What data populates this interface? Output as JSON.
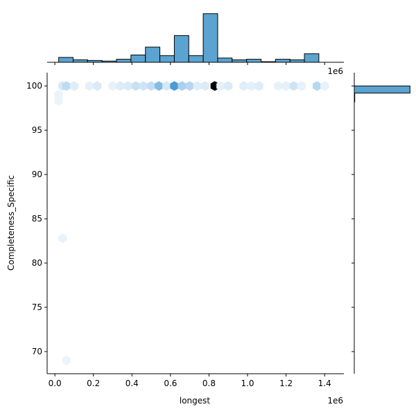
{
  "chart_data": {
    "type": "hexbin-jointplot",
    "xlabel": "longest",
    "ylabel": "Completeness_Specific",
    "x_offset_label": "1e6",
    "top_offset_label": "1e6",
    "xlim": [
      -40000,
      1500000
    ],
    "ylim": [
      67.5,
      101.5
    ],
    "x_ticks": [
      0,
      200000,
      400000,
      600000,
      800000,
      1000000,
      1200000,
      1400000
    ],
    "x_tick_labels": [
      "0.0",
      "0.2",
      "0.4",
      "0.6",
      "0.8",
      "1.0",
      "1.2",
      "1.4"
    ],
    "y_ticks": [
      70,
      75,
      80,
      85,
      90,
      95,
      100
    ],
    "y_tick_labels": [
      "70",
      "75",
      "80",
      "85",
      "90",
      "95",
      "100"
    ],
    "hexbins": [
      {
        "x": 40000,
        "y": 100,
        "count": 0.12
      },
      {
        "x": 60000,
        "y": 100,
        "count": 0.22
      },
      {
        "x": 100000,
        "y": 100,
        "count": 0.08
      },
      {
        "x": 180000,
        "y": 100,
        "count": 0.06
      },
      {
        "x": 220000,
        "y": 100,
        "count": 0.1
      },
      {
        "x": 300000,
        "y": 100,
        "count": 0.05
      },
      {
        "x": 340000,
        "y": 100,
        "count": 0.09
      },
      {
        "x": 380000,
        "y": 100,
        "count": 0.1
      },
      {
        "x": 420000,
        "y": 100,
        "count": 0.18
      },
      {
        "x": 460000,
        "y": 100,
        "count": 0.15
      },
      {
        "x": 500000,
        "y": 100,
        "count": 0.2
      },
      {
        "x": 540000,
        "y": 100,
        "count": 0.45
      },
      {
        "x": 580000,
        "y": 100,
        "count": 0.12
      },
      {
        "x": 620000,
        "y": 100,
        "count": 0.7
      },
      {
        "x": 660000,
        "y": 100,
        "count": 0.3
      },
      {
        "x": 700000,
        "y": 100,
        "count": 0.25
      },
      {
        "x": 740000,
        "y": 100,
        "count": 0.08
      },
      {
        "x": 780000,
        "y": 100,
        "count": 0.1
      },
      {
        "x": 830000,
        "y": 100,
        "count": 1.0
      },
      {
        "x": 860000,
        "y": 100,
        "count": 0.06
      },
      {
        "x": 900000,
        "y": 100,
        "count": 0.1
      },
      {
        "x": 980000,
        "y": 100,
        "count": 0.08
      },
      {
        "x": 1020000,
        "y": 100,
        "count": 0.06
      },
      {
        "x": 1060000,
        "y": 100,
        "count": 0.09
      },
      {
        "x": 1160000,
        "y": 100,
        "count": 0.05
      },
      {
        "x": 1200000,
        "y": 100,
        "count": 0.06
      },
      {
        "x": 1240000,
        "y": 100,
        "count": 0.15
      },
      {
        "x": 1280000,
        "y": 100,
        "count": 0.05
      },
      {
        "x": 1360000,
        "y": 100,
        "count": 0.25
      },
      {
        "x": 1400000,
        "y": 100,
        "count": 0.05
      },
      {
        "x": 20000,
        "y": 99,
        "count": 0.04
      },
      {
        "x": 20000,
        "y": 98.3,
        "count": 0.03
      },
      {
        "x": 40000,
        "y": 82.8,
        "count": 0.04
      },
      {
        "x": 60000,
        "y": 69.0,
        "count": 0.03
      }
    ],
    "top_histogram": {
      "bins": [
        {
          "x0": 20000,
          "x1": 95000,
          "count": 8
        },
        {
          "x0": 95000,
          "x1": 170000,
          "count": 4
        },
        {
          "x0": 170000,
          "x1": 245000,
          "count": 3
        },
        {
          "x0": 245000,
          "x1": 320000,
          "count": 2
        },
        {
          "x0": 320000,
          "x1": 395000,
          "count": 5
        },
        {
          "x0": 395000,
          "x1": 470000,
          "count": 12
        },
        {
          "x0": 470000,
          "x1": 545000,
          "count": 25
        },
        {
          "x0": 545000,
          "x1": 620000,
          "count": 11
        },
        {
          "x0": 620000,
          "x1": 695000,
          "count": 44
        },
        {
          "x0": 695000,
          "x1": 770000,
          "count": 11
        },
        {
          "x0": 770000,
          "x1": 845000,
          "count": 80
        },
        {
          "x0": 845000,
          "x1": 920000,
          "count": 7
        },
        {
          "x0": 920000,
          "x1": 995000,
          "count": 4
        },
        {
          "x0": 995000,
          "x1": 1070000,
          "count": 5
        },
        {
          "x0": 1070000,
          "x1": 1145000,
          "count": 1
        },
        {
          "x0": 1145000,
          "x1": 1220000,
          "count": 5
        },
        {
          "x0": 1220000,
          "x1": 1295000,
          "count": 4
        },
        {
          "x0": 1295000,
          "x1": 1370000,
          "count": 14
        }
      ],
      "ymax": 82
    },
    "right_histogram": {
      "bins": [
        {
          "y0": 98.2,
          "y1": 99.2,
          "count": 2
        },
        {
          "y0": 99.2,
          "y1": 100.0,
          "count": 240
        }
      ],
      "xmax": 242
    },
    "colors": {
      "bar_fill": "#5ba3d0",
      "bar_stroke": "#000000",
      "hex_light": "#f2f8fd",
      "hex_mid": "#3d94d3",
      "hex_max": "#000000"
    }
  }
}
